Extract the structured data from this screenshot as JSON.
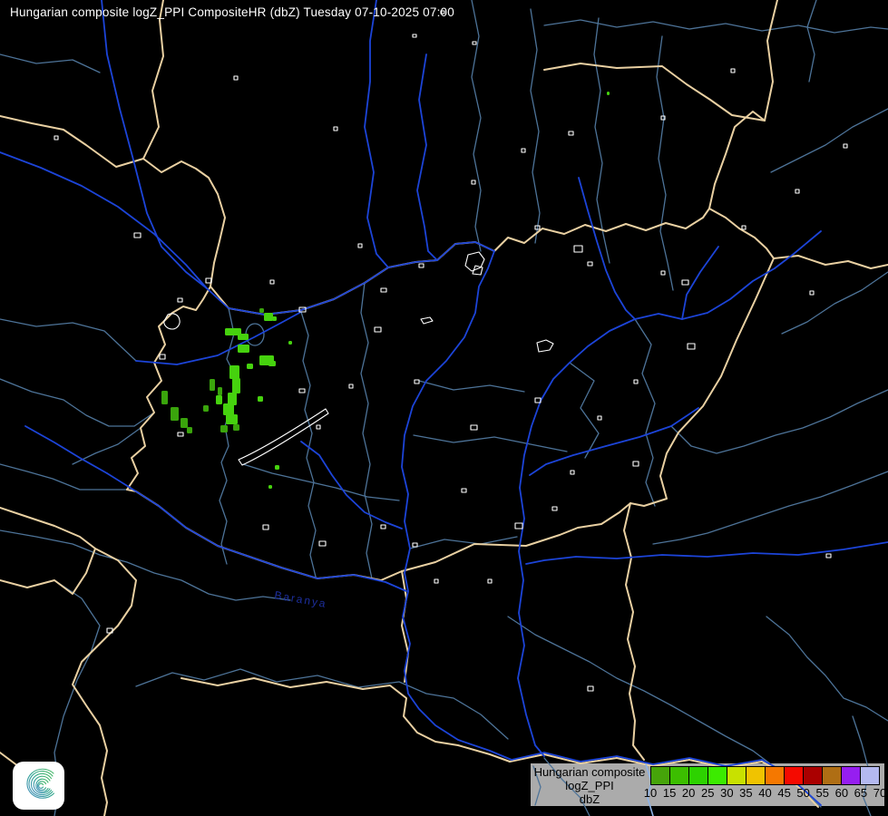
{
  "header": {
    "title": "Hungarian composite logZ_PPI CompositeHR (dbZ) Tuesday 07-10-2025 07:00"
  },
  "map": {
    "colors": {
      "background": "#000000",
      "country_border": "#e9d0a2",
      "major_river": "#1c44d8",
      "minor_river": "#4d7398",
      "pale_blue": "#8fb4e8",
      "city_outline": "#ffffff",
      "county_label": "#1d2f9e",
      "echo_bright": "#46d20e",
      "echo_dark": "#3aa40c"
    },
    "labels": [
      {
        "text": "Baranya"
      }
    ],
    "radar_echo_levels_dbz": [
      10,
      15,
      20,
      25
    ]
  },
  "legend": {
    "background": "#ababab",
    "text_color": "#000000",
    "title_lines": [
      "Hungarian composite",
      "logZ_PPI",
      "dbZ"
    ],
    "tick_labels": [
      "10",
      "15",
      "20",
      "25",
      "30",
      "35",
      "40",
      "45",
      "50",
      "55",
      "60",
      "65",
      "70"
    ],
    "colors": [
      "#46a40a",
      "#3cbe00",
      "#2dd200",
      "#3ceb00",
      "#c8e100",
      "#f0c300",
      "#f57800",
      "#f50a00",
      "#aa0000",
      "#af6e14",
      "#961ef0",
      "#b4b9f0"
    ]
  },
  "logo": {
    "name": "weather-service-spiral-logo",
    "colors": [
      "#4a8fc2",
      "#2fa391",
      "#43b95e"
    ]
  }
}
